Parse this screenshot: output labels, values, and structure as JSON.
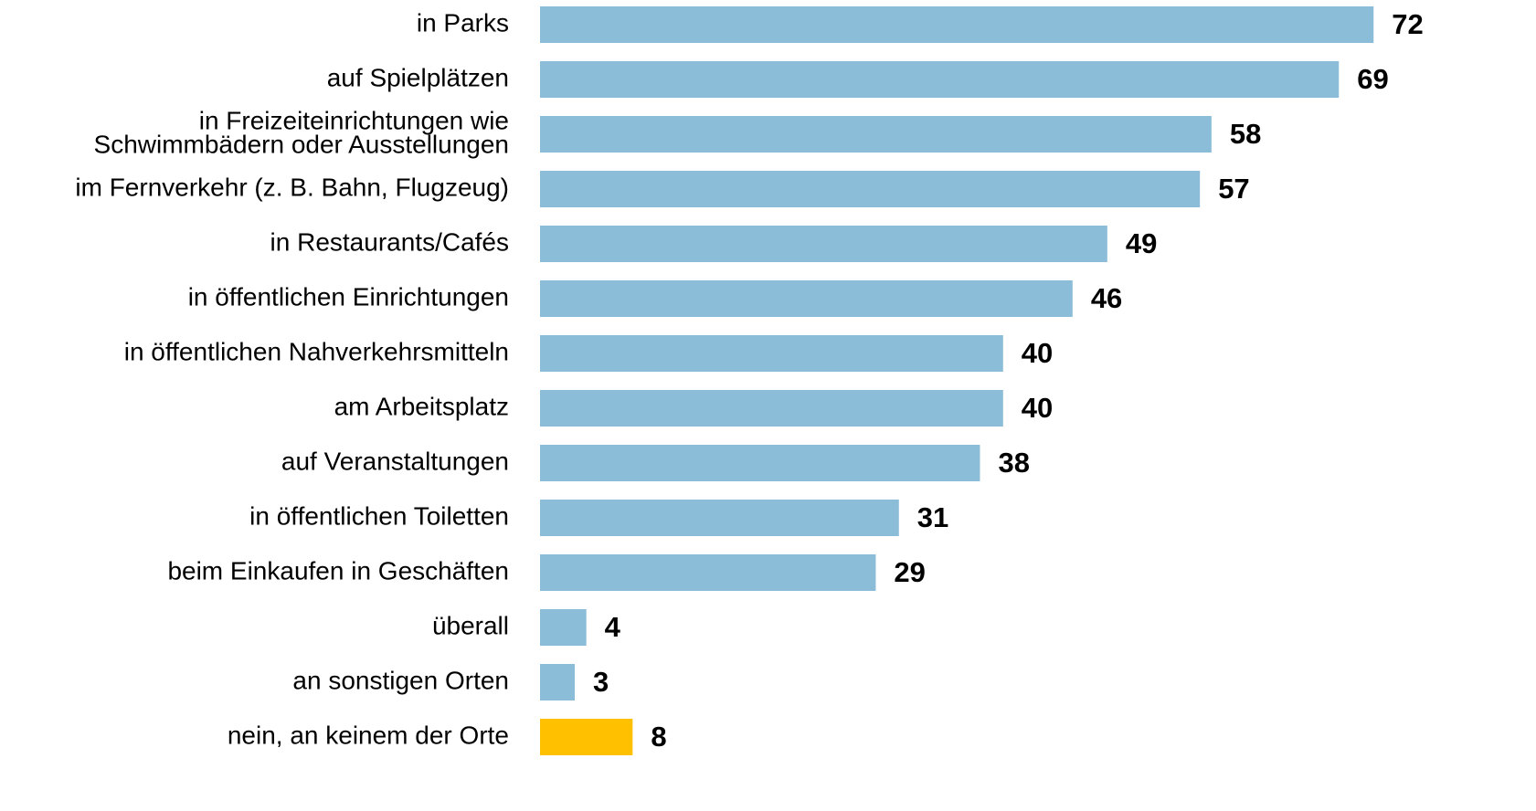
{
  "chart_data": {
    "type": "bar",
    "orientation": "horizontal",
    "categories": [
      "in Parks",
      "auf Spielplätzen",
      [
        "in Freizeiteinrichtungen wie",
        "Schwimmbädern oder Ausstellungen"
      ],
      "im Fernverkehr (z. B. Bahn, Flugzeug)",
      "in Restaurants/Cafés",
      "in öffentlichen Einrichtungen",
      "in öffentlichen Nahverkehrsmitteln",
      "am Arbeitsplatz",
      "auf Veranstaltungen",
      "in öffentlichen Toiletten",
      "beim Einkaufen in Geschäften",
      "überall",
      "an sonstigen Orten",
      "nein, an keinem der Orte"
    ],
    "values": [
      72,
      69,
      58,
      57,
      49,
      46,
      40,
      40,
      38,
      31,
      29,
      4,
      3,
      8
    ],
    "colors": [
      "#8bbdd9",
      "#8bbdd9",
      "#8bbdd9",
      "#8bbdd9",
      "#8bbdd9",
      "#8bbdd9",
      "#8bbdd9",
      "#8bbdd9",
      "#8bbdd9",
      "#8bbdd9",
      "#8bbdd9",
      "#8bbdd9",
      "#8bbdd9",
      "#ffc000"
    ]
  }
}
